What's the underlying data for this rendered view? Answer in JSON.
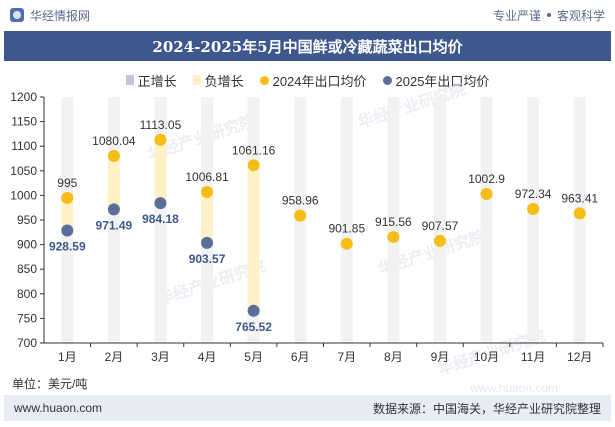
{
  "header": {
    "brand": "华经情报网",
    "slogan_left": "专业严谨",
    "slogan_right": "客观科学"
  },
  "footer": {
    "website": "www.huaon.com",
    "source": "数据来源：中国海关，华经产业研究院整理"
  },
  "unit_label": "单位：美元/吨",
  "colors": {
    "series_2024": "#f6bd16",
    "series_2025": "#5b6e9a",
    "positive": "#bfc7d9",
    "negative": "#fff1c7",
    "title_bg": "#3e578d"
  },
  "chart_data": {
    "type": "line",
    "title": "2024-2025年5月中国鲜或冷藏蔬菜出口均价",
    "categories": [
      "1月",
      "2月",
      "3月",
      "4月",
      "5月",
      "6月",
      "7月",
      "8月",
      "9月",
      "10月",
      "11月",
      "12月"
    ],
    "legend": [
      {
        "label": "正增长",
        "kind": "bar",
        "color": "#bfc7d9"
      },
      {
        "label": "负增长",
        "kind": "bar",
        "color": "#fff1c7"
      },
      {
        "label": "2024年出口均价",
        "kind": "dot",
        "color": "#f6bd16"
      },
      {
        "label": "2025年出口均价",
        "kind": "dot",
        "color": "#5b6e9a"
      }
    ],
    "series": [
      {
        "name": "2024年出口均价",
        "values": [
          995,
          1080.04,
          1113.05,
          1006.81,
          1061.16,
          958.96,
          901.85,
          915.56,
          907.57,
          1002.9,
          972.34,
          963.41
        ]
      },
      {
        "name": "2025年出口均价",
        "values": [
          928.59,
          971.49,
          984.18,
          903.57,
          765.52,
          null,
          null,
          null,
          null,
          null,
          null,
          null
        ]
      }
    ],
    "labels_2024": [
      "995",
      "1080.04",
      "1113.05",
      "1006.81",
      "1061.16",
      "958.96",
      "901.85",
      "915.56",
      "907.57",
      "1002.9",
      "972.34",
      "963.41"
    ],
    "labels_2025": [
      "928.59",
      "971.49",
      "984.18",
      "903.57",
      "765.52"
    ],
    "yticks": [
      "700",
      "750",
      "800",
      "850",
      "900",
      "950",
      "1000",
      "1050",
      "1100",
      "1150",
      "1200"
    ],
    "ylim": [
      700,
      1200
    ],
    "legend_position": "top",
    "grid": false
  },
  "watermark": "华经产业研究院",
  "watermark_url": "www.huaon.com"
}
